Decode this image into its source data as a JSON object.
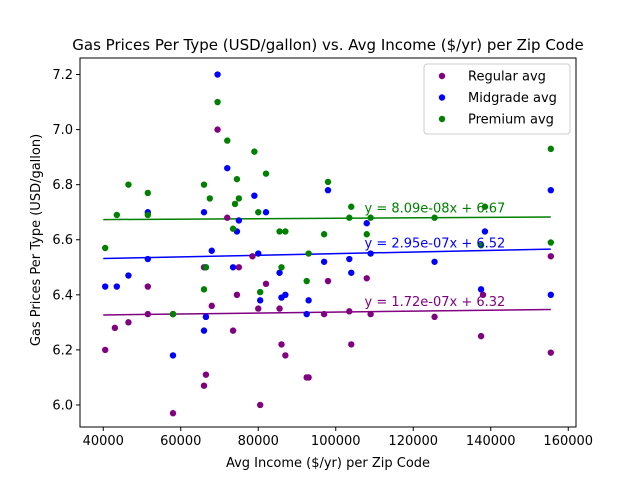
{
  "chart_data": {
    "type": "scatter",
    "title": "Gas Prices Per Type (USD/gallon) vs. Avg Income ($/yr) per Zip Code",
    "xlabel": "Avg Income ($/yr) per Zip Code",
    "ylabel": "Gas Prices Per Type (USD/gallon)",
    "xlim": [
      34000,
      162000
    ],
    "ylim": [
      5.92,
      7.26
    ],
    "xticks": [
      40000,
      60000,
      80000,
      100000,
      120000,
      140000,
      160000
    ],
    "yticks": [
      6.0,
      6.2,
      6.4,
      6.6,
      6.8,
      7.0,
      7.2
    ],
    "legend_position": "upper right",
    "grid": false,
    "series": [
      {
        "name": "Regular avg",
        "color": "#800080",
        "points": [
          [
            40500,
            6.2
          ],
          [
            43000,
            6.28
          ],
          [
            46500,
            6.3
          ],
          [
            51500,
            6.43
          ],
          [
            51500,
            6.33
          ],
          [
            58000,
            5.97
          ],
          [
            58000,
            6.33
          ],
          [
            66000,
            6.5
          ],
          [
            66000,
            6.07
          ],
          [
            66500,
            6.11
          ],
          [
            66500,
            6.32
          ],
          [
            68000,
            6.36
          ],
          [
            69500,
            7.0
          ],
          [
            72000,
            6.68
          ],
          [
            73500,
            6.27
          ],
          [
            74500,
            6.4
          ],
          [
            75000,
            6.5
          ],
          [
            78500,
            6.54
          ],
          [
            80000,
            6.35
          ],
          [
            80500,
            6.0
          ],
          [
            82000,
            6.44
          ],
          [
            85500,
            6.35
          ],
          [
            86000,
            6.22
          ],
          [
            87000,
            6.18
          ],
          [
            92500,
            6.1
          ],
          [
            93000,
            6.1
          ],
          [
            97000,
            6.33
          ],
          [
            98000,
            6.45
          ],
          [
            103500,
            6.34
          ],
          [
            104000,
            6.22
          ],
          [
            108000,
            6.46
          ],
          [
            109000,
            6.33
          ],
          [
            125500,
            6.32
          ],
          [
            137500,
            6.25
          ],
          [
            138000,
            6.4
          ],
          [
            155500,
            6.54
          ],
          [
            155500,
            6.19
          ]
        ],
        "fit": {
          "slope": 1.72e-07,
          "intercept": 6.32,
          "label": "y = 1.72e-07x + 6.32"
        }
      },
      {
        "name": "Midgrade avg",
        "color": "#0000ff",
        "points": [
          [
            40500,
            6.43
          ],
          [
            43500,
            6.43
          ],
          [
            46500,
            6.47
          ],
          [
            51500,
            6.7
          ],
          [
            51500,
            6.53
          ],
          [
            58000,
            6.18
          ],
          [
            66000,
            6.7
          ],
          [
            66000,
            6.27
          ],
          [
            66500,
            6.5
          ],
          [
            66500,
            6.32
          ],
          [
            68000,
            6.56
          ],
          [
            69500,
            7.2
          ],
          [
            72000,
            6.86
          ],
          [
            73500,
            6.5
          ],
          [
            74500,
            6.63
          ],
          [
            75000,
            6.67
          ],
          [
            79000,
            6.76
          ],
          [
            80000,
            6.55
          ],
          [
            80500,
            6.38
          ],
          [
            82000,
            6.7
          ],
          [
            85500,
            6.48
          ],
          [
            86000,
            6.39
          ],
          [
            87000,
            6.4
          ],
          [
            92500,
            6.33
          ],
          [
            93000,
            6.38
          ],
          [
            97000,
            6.52
          ],
          [
            98000,
            6.78
          ],
          [
            103500,
            6.53
          ],
          [
            104000,
            6.48
          ],
          [
            108000,
            6.66
          ],
          [
            109000,
            6.55
          ],
          [
            125500,
            6.52
          ],
          [
            137500,
            6.42
          ],
          [
            138500,
            6.63
          ],
          [
            155500,
            6.78
          ],
          [
            155500,
            6.4
          ]
        ],
        "fit": {
          "slope": 2.95e-07,
          "intercept": 6.52,
          "label": "y = 2.95e-07x + 6.52"
        }
      },
      {
        "name": "Premium avg",
        "color": "#008000",
        "points": [
          [
            40500,
            6.57
          ],
          [
            43500,
            6.69
          ],
          [
            46500,
            6.8
          ],
          [
            51500,
            6.77
          ],
          [
            51500,
            6.69
          ],
          [
            58000,
            6.33
          ],
          [
            66000,
            6.8
          ],
          [
            66000,
            6.42
          ],
          [
            66500,
            6.5
          ],
          [
            67500,
            6.75
          ],
          [
            69500,
            7.1
          ],
          [
            72000,
            6.96
          ],
          [
            73500,
            6.64
          ],
          [
            74000,
            6.73
          ],
          [
            74500,
            6.82
          ],
          [
            75000,
            6.75
          ],
          [
            79000,
            6.92
          ],
          [
            80000,
            6.7
          ],
          [
            80500,
            6.41
          ],
          [
            82000,
            6.84
          ],
          [
            85500,
            6.63
          ],
          [
            86000,
            6.5
          ],
          [
            87000,
            6.63
          ],
          [
            92500,
            6.45
          ],
          [
            93000,
            6.55
          ],
          [
            97000,
            6.62
          ],
          [
            98000,
            6.81
          ],
          [
            103500,
            6.68
          ],
          [
            104000,
            6.72
          ],
          [
            108000,
            6.62
          ],
          [
            109000,
            6.68
          ],
          [
            125500,
            6.68
          ],
          [
            137500,
            6.58
          ],
          [
            138500,
            6.72
          ],
          [
            155500,
            6.93
          ],
          [
            155500,
            6.59
          ]
        ],
        "fit": {
          "slope": 8.09e-08,
          "intercept": 6.67,
          "label": "y = 8.09e-08x + 6.67"
        }
      }
    ],
    "fit_x_range": [
      40000,
      155500
    ],
    "equation_label_anchor": {
      "x": 110000,
      "y_offset": 0.02
    }
  }
}
